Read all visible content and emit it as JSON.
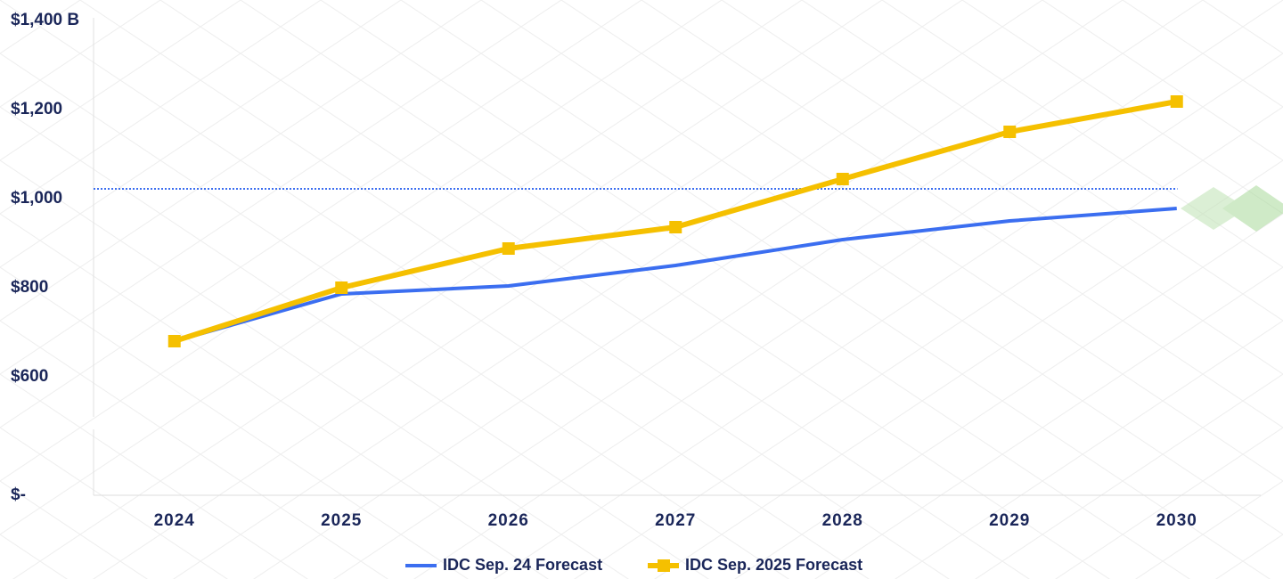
{
  "chart_data": {
    "type": "line",
    "categories": [
      "2024",
      "2025",
      "2026",
      "2027",
      "2028",
      "2029",
      "2030"
    ],
    "series": [
      {
        "name": "IDC Sep. 24 Forecast",
        "color": "#3b6ef0",
        "marker": "none",
        "values": [
          680,
          786,
          804,
          850,
          908,
          950,
          978
        ]
      },
      {
        "name": "IDC Sep. 2025 Forecast",
        "color": "#f5c000",
        "marker": "square",
        "values": [
          680,
          800,
          888,
          936,
          1044,
          1150,
          1218
        ]
      }
    ],
    "ylim": [
      0,
      1400
    ],
    "ybreak": [
      0,
      600
    ],
    "yticks": [
      {
        "value": 0,
        "label": "$-"
      },
      {
        "value": 600,
        "label": "$600"
      },
      {
        "value": 800,
        "label": "$800"
      },
      {
        "value": 1000,
        "label": "$1,000"
      },
      {
        "value": 1200,
        "label": "$1,200"
      },
      {
        "value": 1400,
        "label": "$1,400 B"
      }
    ],
    "reference_line": {
      "value": 1022,
      "color": "#3b6ef0",
      "style": "dotted"
    },
    "legend": "bottom"
  }
}
